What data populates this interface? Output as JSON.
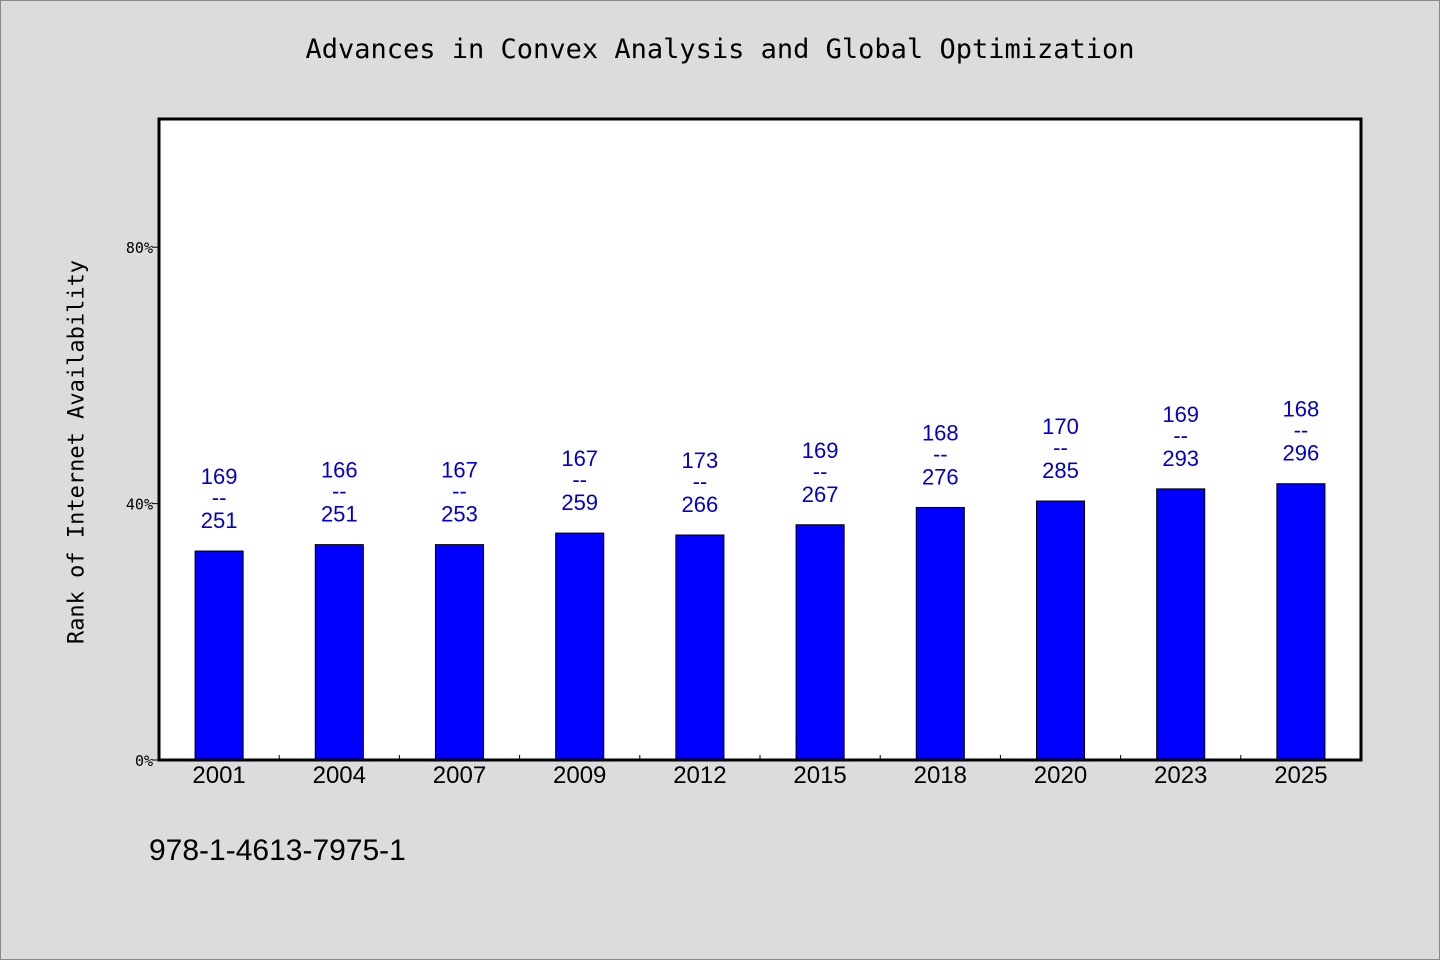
{
  "chart_data": {
    "type": "bar",
    "title": "Advances in Convex Analysis and Global Optimization",
    "ylabel": "Rank of Internet Availability",
    "xlabel": "",
    "categories": [
      "2001",
      "2004",
      "2007",
      "2009",
      "2012",
      "2015",
      "2018",
      "2020",
      "2023",
      "2025"
    ],
    "values": [
      32.6,
      33.6,
      33.6,
      35.4,
      35.1,
      36.7,
      39.4,
      40.4,
      42.3,
      43.1
    ],
    "labels_top": [
      "169",
      "166",
      "167",
      "167",
      "173",
      "169",
      "168",
      "170",
      "169",
      "168"
    ],
    "labels_sep": "--",
    "labels_bottom": [
      "251",
      "251",
      "253",
      "259",
      "266",
      "267",
      "276",
      "285",
      "293",
      "296"
    ],
    "yticks": [
      0,
      40,
      80
    ],
    "ytick_labels": [
      "0%",
      "40%",
      "80%"
    ],
    "ylim": [
      0,
      100
    ],
    "bar_color": "#0000ff",
    "label_color": "#0000cc",
    "grid": false
  },
  "footer": {
    "isbn": "978-1-4613-7975-1"
  }
}
